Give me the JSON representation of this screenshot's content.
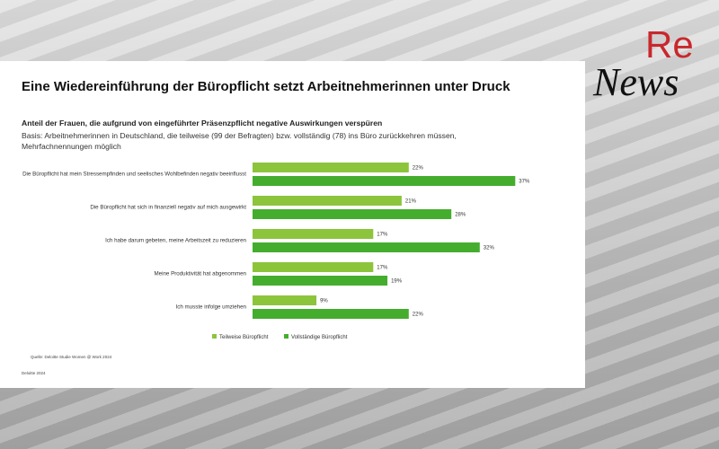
{
  "chart_data": {
    "type": "bar",
    "orientation": "horizontal",
    "title": "Eine Wiedereinführung der Büropflicht setzt Arbeitnehmerinnen unter Druck",
    "subtitle": "Anteil der Frauen, die aufgrund von eingeführter Präsenzpflicht negative Auswirkungen verspüren",
    "note": "Basis: Arbeitnehmerinnen in Deutschland, die teilweise (99 der Befragten) bzw. vollständig (78) ins Büro zurückkehren müssen, Mehrfachnennungen möglich",
    "categories": [
      "Die Büropflicht hat mein Stressempfinden und seelisches Wohlbefinden negativ beeinflusst",
      "Die Büropflicht hat sich in finanziell negativ auf mich ausgewirkt",
      "Ich habe darum gebeten, meine Arbeitszeit zu reduzieren",
      "Meine Produktivität hat abgenommen",
      "Ich musste infolge umziehen"
    ],
    "series": [
      {
        "name": "Teilweise Büropflicht",
        "color": "#8cc43c",
        "values": [
          22,
          21,
          17,
          17,
          9
        ],
        "value_labels": [
          "22%",
          "21%",
          "17%",
          "17%",
          "9%"
        ]
      },
      {
        "name": "Vollständige Büropflicht",
        "color": "#45ad2e",
        "values": [
          37,
          28,
          32,
          19,
          22
        ],
        "value_labels": [
          "37%",
          "28%",
          "32%",
          "19%",
          "22%"
        ]
      }
    ],
    "source": "Quelle: Deloitte Studie Women @ Work 2024",
    "copyright": "Deloitte 2024"
  },
  "logo": {
    "re": "Re",
    "news": "News"
  }
}
